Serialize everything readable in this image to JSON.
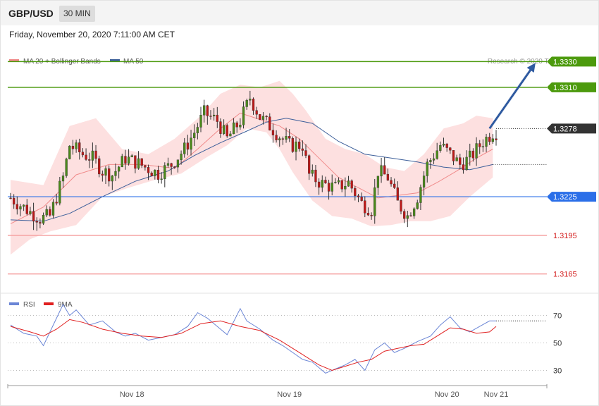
{
  "header": {
    "symbol": "GBP/USD",
    "timeframe": "30 MIN",
    "datetime": "Friday, November 20, 2020 7:11:00 AM CET"
  },
  "legend": {
    "ma20": {
      "label": "MA 20 + Bollinger Bands",
      "color": "#f08a8a"
    },
    "ma50": {
      "label": "MA 50",
      "color": "#3d5f9a"
    }
  },
  "credit": "Research © 2020 Trading Central",
  "rsi_legend": {
    "rsi": {
      "label": "RSI",
      "color": "#6b86d6"
    },
    "ma9": {
      "label": "9MA",
      "color": "#e02020"
    }
  },
  "chart_data": [
    {
      "type": "candlestick",
      "ylim": [
        1.315,
        1.3345
      ],
      "x_ticks": [
        {
          "label": "Nov 18",
          "index": 37
        },
        {
          "label": "Nov 19",
          "index": 85
        },
        {
          "label": "Nov 20",
          "index": 133
        },
        {
          "label": "Nov 21",
          "index": 148
        }
      ],
      "levels": [
        {
          "label": "1.3330",
          "value": 1.333,
          "kind": "resistance",
          "color": "#4c9a0d"
        },
        {
          "label": "1.3310",
          "value": 1.331,
          "kind": "resistance",
          "color": "#4c9a0d"
        },
        {
          "label": "1.3278",
          "value": 1.3278,
          "kind": "current",
          "color": "#333333"
        },
        {
          "label": "1.3225",
          "value": 1.3225,
          "kind": "pivot",
          "color": "#2b6fe8"
        },
        {
          "label": "1.3195",
          "value": 1.3195,
          "kind": "support",
          "color": "#e05858"
        },
        {
          "label": "1.3165",
          "value": 1.3165,
          "kind": "support",
          "color": "#e05858"
        }
      ],
      "close_anchors": [
        [
          0,
          1.3224
        ],
        [
          6,
          1.3213
        ],
        [
          9,
          1.3208
        ],
        [
          12,
          1.321
        ],
        [
          16,
          1.324
        ],
        [
          18,
          1.3265
        ],
        [
          22,
          1.3258
        ],
        [
          25,
          1.3255
        ],
        [
          28,
          1.3245
        ],
        [
          31,
          1.3242
        ],
        [
          35,
          1.3255
        ],
        [
          38,
          1.3252
        ],
        [
          41,
          1.3248
        ],
        [
          45,
          1.3243
        ],
        [
          49,
          1.325
        ],
        [
          53,
          1.3262
        ],
        [
          56,
          1.3275
        ],
        [
          59,
          1.329
        ],
        [
          63,
          1.3284
        ],
        [
          66,
          1.327
        ],
        [
          70,
          1.3284
        ],
        [
          73,
          1.3302
        ],
        [
          76,
          1.3287
        ],
        [
          79,
          1.328
        ],
        [
          82,
          1.3272
        ],
        [
          85,
          1.3265
        ],
        [
          89,
          1.3265
        ],
        [
          91,
          1.3242
        ],
        [
          95,
          1.3235
        ],
        [
          99,
          1.3232
        ],
        [
          103,
          1.3236
        ],
        [
          107,
          1.322
        ],
        [
          110,
          1.3215
        ],
        [
          112,
          1.3245
        ],
        [
          115,
          1.324
        ],
        [
          118,
          1.322
        ],
        [
          121,
          1.321
        ],
        [
          124,
          1.3225
        ],
        [
          127,
          1.325
        ],
        [
          131,
          1.3265
        ],
        [
          134,
          1.3258
        ],
        [
          137,
          1.325
        ],
        [
          140,
          1.3255
        ],
        [
          144,
          1.3268
        ],
        [
          147,
          1.3275
        ]
      ],
      "ma20": [
        [
          0,
          1.3204
        ],
        [
          10,
          1.3217
        ],
        [
          20,
          1.3242
        ],
        [
          30,
          1.325
        ],
        [
          40,
          1.325
        ],
        [
          50,
          1.3247
        ],
        [
          57,
          1.3262
        ],
        [
          64,
          1.3278
        ],
        [
          70,
          1.329
        ],
        [
          76,
          1.3285
        ],
        [
          82,
          1.328
        ],
        [
          88,
          1.327
        ],
        [
          94,
          1.3255
        ],
        [
          100,
          1.324
        ],
        [
          106,
          1.3232
        ],
        [
          112,
          1.3224
        ],
        [
          118,
          1.3226
        ],
        [
          124,
          1.3228
        ],
        [
          130,
          1.3236
        ],
        [
          136,
          1.3245
        ],
        [
          142,
          1.3255
        ],
        [
          147,
          1.3262
        ]
      ],
      "bb_upper": [
        [
          0,
          1.3238
        ],
        [
          10,
          1.3234
        ],
        [
          18,
          1.328
        ],
        [
          26,
          1.3286
        ],
        [
          34,
          1.3262
        ],
        [
          42,
          1.3258
        ],
        [
          50,
          1.327
        ],
        [
          58,
          1.3288
        ],
        [
          64,
          1.3305
        ],
        [
          70,
          1.3312
        ],
        [
          76,
          1.331
        ],
        [
          82,
          1.3315
        ],
        [
          86,
          1.3305
        ],
        [
          90,
          1.3292
        ],
        [
          96,
          1.327
        ],
        [
          102,
          1.3262
        ],
        [
          108,
          1.3258
        ],
        [
          114,
          1.3248
        ],
        [
          120,
          1.3245
        ],
        [
          126,
          1.3258
        ],
        [
          132,
          1.3278
        ],
        [
          138,
          1.3282
        ],
        [
          142,
          1.3288
        ],
        [
          147,
          1.3286
        ]
      ],
      "bb_lower": [
        [
          0,
          1.318
        ],
        [
          6,
          1.3192
        ],
        [
          12,
          1.3198
        ],
        [
          20,
          1.3203
        ],
        [
          28,
          1.3225
        ],
        [
          36,
          1.3232
        ],
        [
          44,
          1.3238
        ],
        [
          52,
          1.3243
        ],
        [
          60,
          1.3256
        ],
        [
          66,
          1.3265
        ],
        [
          72,
          1.3278
        ],
        [
          78,
          1.3275
        ],
        [
          82,
          1.3262
        ],
        [
          86,
          1.3244
        ],
        [
          92,
          1.3222
        ],
        [
          98,
          1.321
        ],
        [
          104,
          1.3208
        ],
        [
          110,
          1.3202
        ],
        [
          116,
          1.3203
        ],
        [
          122,
          1.3206
        ],
        [
          128,
          1.3206
        ],
        [
          134,
          1.321
        ],
        [
          140,
          1.3225
        ],
        [
          147,
          1.324
        ]
      ],
      "ma50": [
        [
          0,
          1.3207
        ],
        [
          10,
          1.3206
        ],
        [
          18,
          1.3212
        ],
        [
          28,
          1.3225
        ],
        [
          38,
          1.3237
        ],
        [
          48,
          1.3245
        ],
        [
          56,
          1.3257
        ],
        [
          64,
          1.3267
        ],
        [
          72,
          1.3276
        ],
        [
          78,
          1.3283
        ],
        [
          84,
          1.3286
        ],
        [
          92,
          1.3282
        ],
        [
          100,
          1.3268
        ],
        [
          108,
          1.3258
        ],
        [
          116,
          1.3255
        ],
        [
          124,
          1.3252
        ],
        [
          132,
          1.3248
        ],
        [
          140,
          1.3246
        ],
        [
          147,
          1.325
        ]
      ],
      "projection": {
        "from": [
          146,
          1.3278
        ],
        "to": [
          160,
          1.3329
        ]
      }
    },
    {
      "type": "line",
      "name": "RSI",
      "ylim": [
        20,
        80
      ],
      "y_ticks": [
        30,
        50,
        70
      ],
      "rsi": [
        [
          0,
          63
        ],
        [
          4,
          57
        ],
        [
          8,
          55
        ],
        [
          10,
          48
        ],
        [
          14,
          68
        ],
        [
          16,
          78
        ],
        [
          18,
          70
        ],
        [
          20,
          74
        ],
        [
          24,
          63
        ],
        [
          28,
          66
        ],
        [
          32,
          58
        ],
        [
          35,
          55
        ],
        [
          38,
          57
        ],
        [
          42,
          52
        ],
        [
          46,
          54
        ],
        [
          50,
          56
        ],
        [
          54,
          62
        ],
        [
          57,
          72
        ],
        [
          60,
          68
        ],
        [
          63,
          62
        ],
        [
          66,
          56
        ],
        [
          70,
          75
        ],
        [
          72,
          66
        ],
        [
          76,
          60
        ],
        [
          80,
          52
        ],
        [
          83,
          48
        ],
        [
          86,
          43
        ],
        [
          89,
          38
        ],
        [
          92,
          36
        ],
        [
          96,
          28
        ],
        [
          99,
          31
        ],
        [
          102,
          34
        ],
        [
          105,
          38
        ],
        [
          108,
          30
        ],
        [
          111,
          45
        ],
        [
          114,
          50
        ],
        [
          117,
          43
        ],
        [
          120,
          46
        ],
        [
          124,
          51
        ],
        [
          128,
          55
        ],
        [
          131,
          63
        ],
        [
          134,
          69
        ],
        [
          137,
          61
        ],
        [
          140,
          58
        ],
        [
          143,
          62
        ],
        [
          146,
          66
        ],
        [
          148,
          66
        ]
      ],
      "ma9": [
        [
          0,
          62
        ],
        [
          6,
          58
        ],
        [
          10,
          55
        ],
        [
          14,
          60
        ],
        [
          18,
          67
        ],
        [
          22,
          65
        ],
        [
          28,
          60
        ],
        [
          34,
          57
        ],
        [
          40,
          55
        ],
        [
          46,
          54
        ],
        [
          52,
          57
        ],
        [
          58,
          64
        ],
        [
          64,
          66
        ],
        [
          70,
          62
        ],
        [
          76,
          59
        ],
        [
          82,
          52
        ],
        [
          88,
          43
        ],
        [
          94,
          34
        ],
        [
          98,
          30
        ],
        [
          102,
          33
        ],
        [
          106,
          36
        ],
        [
          110,
          38
        ],
        [
          114,
          44
        ],
        [
          118,
          46
        ],
        [
          122,
          48
        ],
        [
          126,
          49
        ],
        [
          130,
          55
        ],
        [
          134,
          61
        ],
        [
          138,
          60
        ],
        [
          142,
          57
        ],
        [
          146,
          58
        ],
        [
          148,
          62
        ]
      ]
    }
  ]
}
